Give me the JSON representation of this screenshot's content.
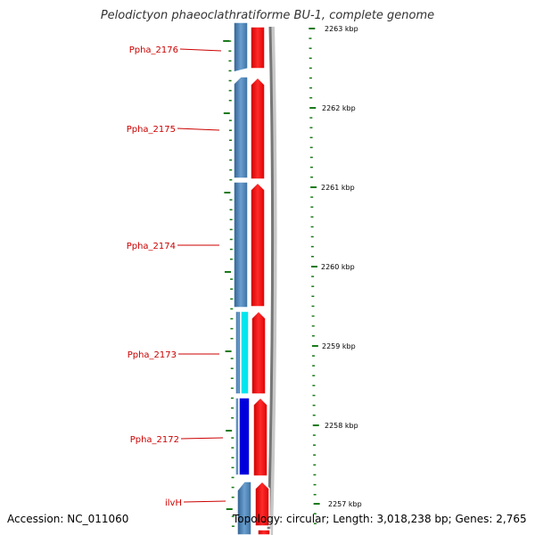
{
  "title": "Pelodictyon phaeoclathratiforme BU-1, complete genome",
  "footer": {
    "accession": "Accession: NC_011060",
    "topology": "Topology: circular; Length: 3,018,238 bp; Genes: 2,765"
  },
  "colors": {
    "gene_label": "#cc0000",
    "forward_cds": "#ee0000",
    "reverse_cds": "#4a7fb5",
    "reverse_cds_cyan": "#00e5ee",
    "reverse_cds_blue": "#0000dd",
    "tick": "#1a7a1a"
  },
  "genes": [
    {
      "label": "Ppha_2176",
      "fill": "#4a7fb5"
    },
    {
      "label": "Ppha_2175",
      "fill": "#4a7fb5"
    },
    {
      "label": "Ppha_2174",
      "fill": "#4a7fb5"
    },
    {
      "label": "Ppha_2173",
      "fill": "#00e5ee"
    },
    {
      "label": "Ppha_2172",
      "fill": "#0000dd"
    },
    {
      "label": "ilvH",
      "fill": "#4a7fb5"
    }
  ],
  "kbp_labels": [
    "2263 kbp",
    "2262 kbp",
    "2261 kbp",
    "2260 kbp",
    "2259 kbp",
    "2258 kbp",
    "2257 kbp"
  ]
}
